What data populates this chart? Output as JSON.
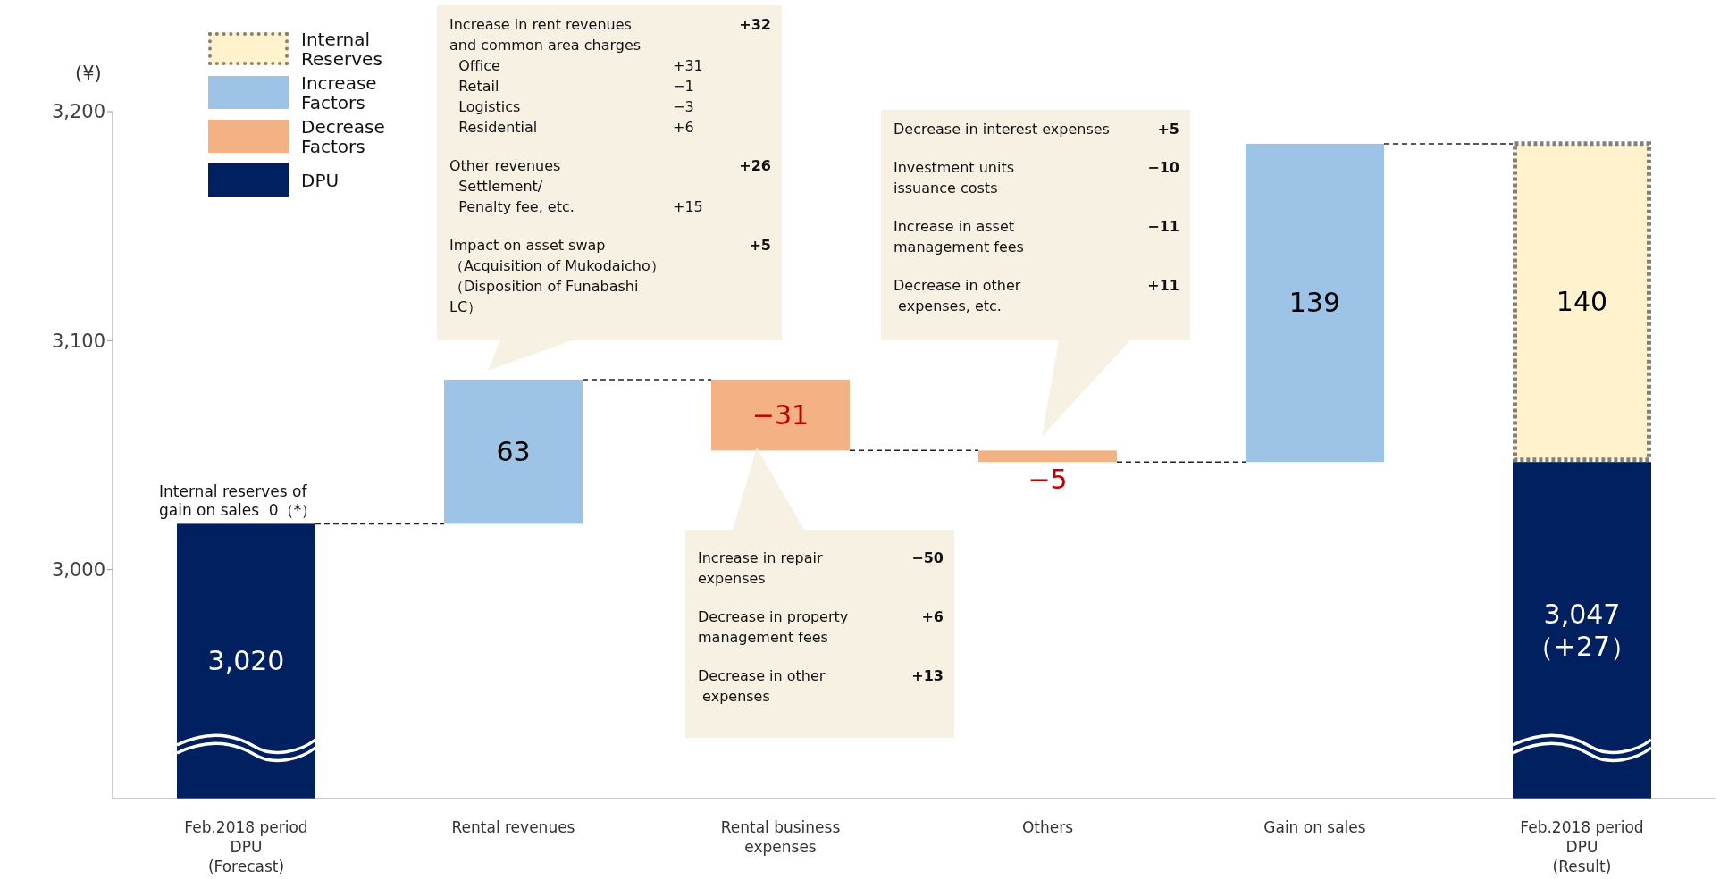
{
  "chart_data": {
    "type": "bar",
    "ylabel": "(¥)",
    "categories": [
      "Feb.2018 period\nDPU\n(Forecast)",
      "Rental revenues",
      "Rental business\nexpenses",
      "Others",
      "Gain on sales",
      "Feb.2018 period\nDPU\n(Result)"
    ],
    "series": [
      {
        "name": "Internal Reserves",
        "color": "#fff2cc",
        "line_style": "dotted",
        "values": [
          null,
          null,
          null,
          null,
          null,
          140
        ],
        "base": [
          null,
          null,
          null,
          null,
          null,
          3047
        ],
        "value_labels": [
          null,
          null,
          null,
          null,
          null,
          "140"
        ]
      },
      {
        "name": "Increase Factors",
        "color": "#9dc3e6",
        "values": [
          null,
          63,
          null,
          null,
          139,
          null
        ],
        "base": [
          null,
          3020,
          null,
          null,
          3047,
          null
        ],
        "value_labels": [
          null,
          "63",
          null,
          null,
          "139",
          null
        ]
      },
      {
        "name": "Decrease Factors",
        "color": "#f4b183",
        "values": [
          null,
          null,
          -31,
          -5,
          null,
          null
        ],
        "base": [
          null,
          null,
          3083,
          3052,
          null,
          null
        ],
        "value_labels": [
          null,
          null,
          "−31",
          "−5",
          null,
          null
        ]
      },
      {
        "name": "DPU",
        "color": "#002060",
        "values": [
          3020,
          null,
          null,
          null,
          null,
          3047
        ],
        "value_labels": [
          "3,020",
          null,
          null,
          null,
          null,
          "3,047\n（+27）"
        ]
      }
    ],
    "ylim": [
      2900,
      3200
    ],
    "yticks": [
      {
        "value": 3000,
        "label": "3,000"
      },
      {
        "value": 3100,
        "label": "3,100"
      },
      {
        "value": 3200,
        "label": "3,200"
      }
    ],
    "legend": "top left",
    "annotations": [
      {
        "text": "Internal reserves of\ngain on sales  0（*）",
        "y": 3020
      },
      "Increase in rent revenues\t\t+32\nand common area charges\n  Office\t+31\n  Retail\t−1\n  Logistics\t−3\n  Residential\t+6\n\nOther revenues\t\t+26\n  Settlement/\n  Penalty fee, etc.\t+15\n\nImpact on asset swap\t\t+5\n（Acquisition of Mukodaicho）（Disposition of Funabashi LC）",
      "Decrease in interest expenses\t\t+5\n\nInvestment units\t\t−10\nissuance costs\n\nIncrease in asset\t\t−11\nmanagement fees\n\nDecrease in other\t\t+11\n expenses, etc.",
      "Increase in repair\t\t−50\nexpenses\n\nDecrease in property\t\t+6\nmanagement fees\n\nDecrease in other\t\t+13\n expenses"
    ]
  }
}
